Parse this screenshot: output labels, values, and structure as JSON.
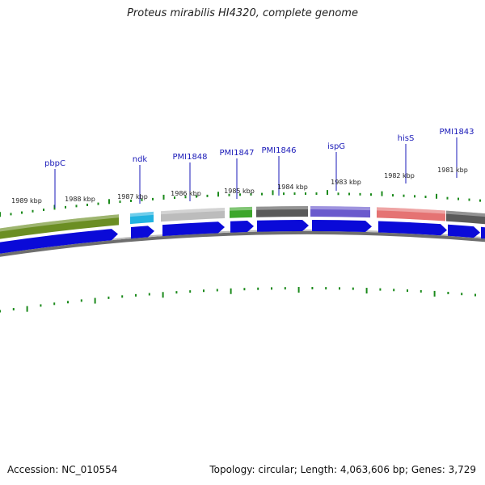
{
  "header": {
    "title": "Proteus mirabilis HI4320, complete genome"
  },
  "footer": {
    "accession": "Accession: NC_010554",
    "summary": "Topology: circular; Length: 4,063,606 bp; Genes: 3,729"
  },
  "genes": [
    {
      "name": "pbpC"
    },
    {
      "name": "ndk"
    },
    {
      "name": "PMI1848"
    },
    {
      "name": "PMI1847"
    },
    {
      "name": "PMI1846"
    },
    {
      "name": "ispG"
    },
    {
      "name": "hisS"
    },
    {
      "name": "PMI1843"
    }
  ],
  "kbp_ticks": [
    "1989 kbp",
    "1988 kbp",
    "1987 kbp",
    "1986 kbp",
    "1985 kbp",
    "1984 kbp",
    "1983 kbp",
    "1982 kbp",
    "1981 kbp"
  ],
  "colors": {
    "cds_arrow": "#0a0ad8",
    "tick_green": "#1b8a1b",
    "backbone_dark": "#6e6e6e",
    "backbone_light": "#bdbdbd",
    "olive": "#6b8e23",
    "cyan": "#22b3e0",
    "silver": "#bcbcbc",
    "green": "#3da62a",
    "dark_gray": "#5a5a5a",
    "purple": "#6a5acd",
    "salmon": "#e57373"
  }
}
